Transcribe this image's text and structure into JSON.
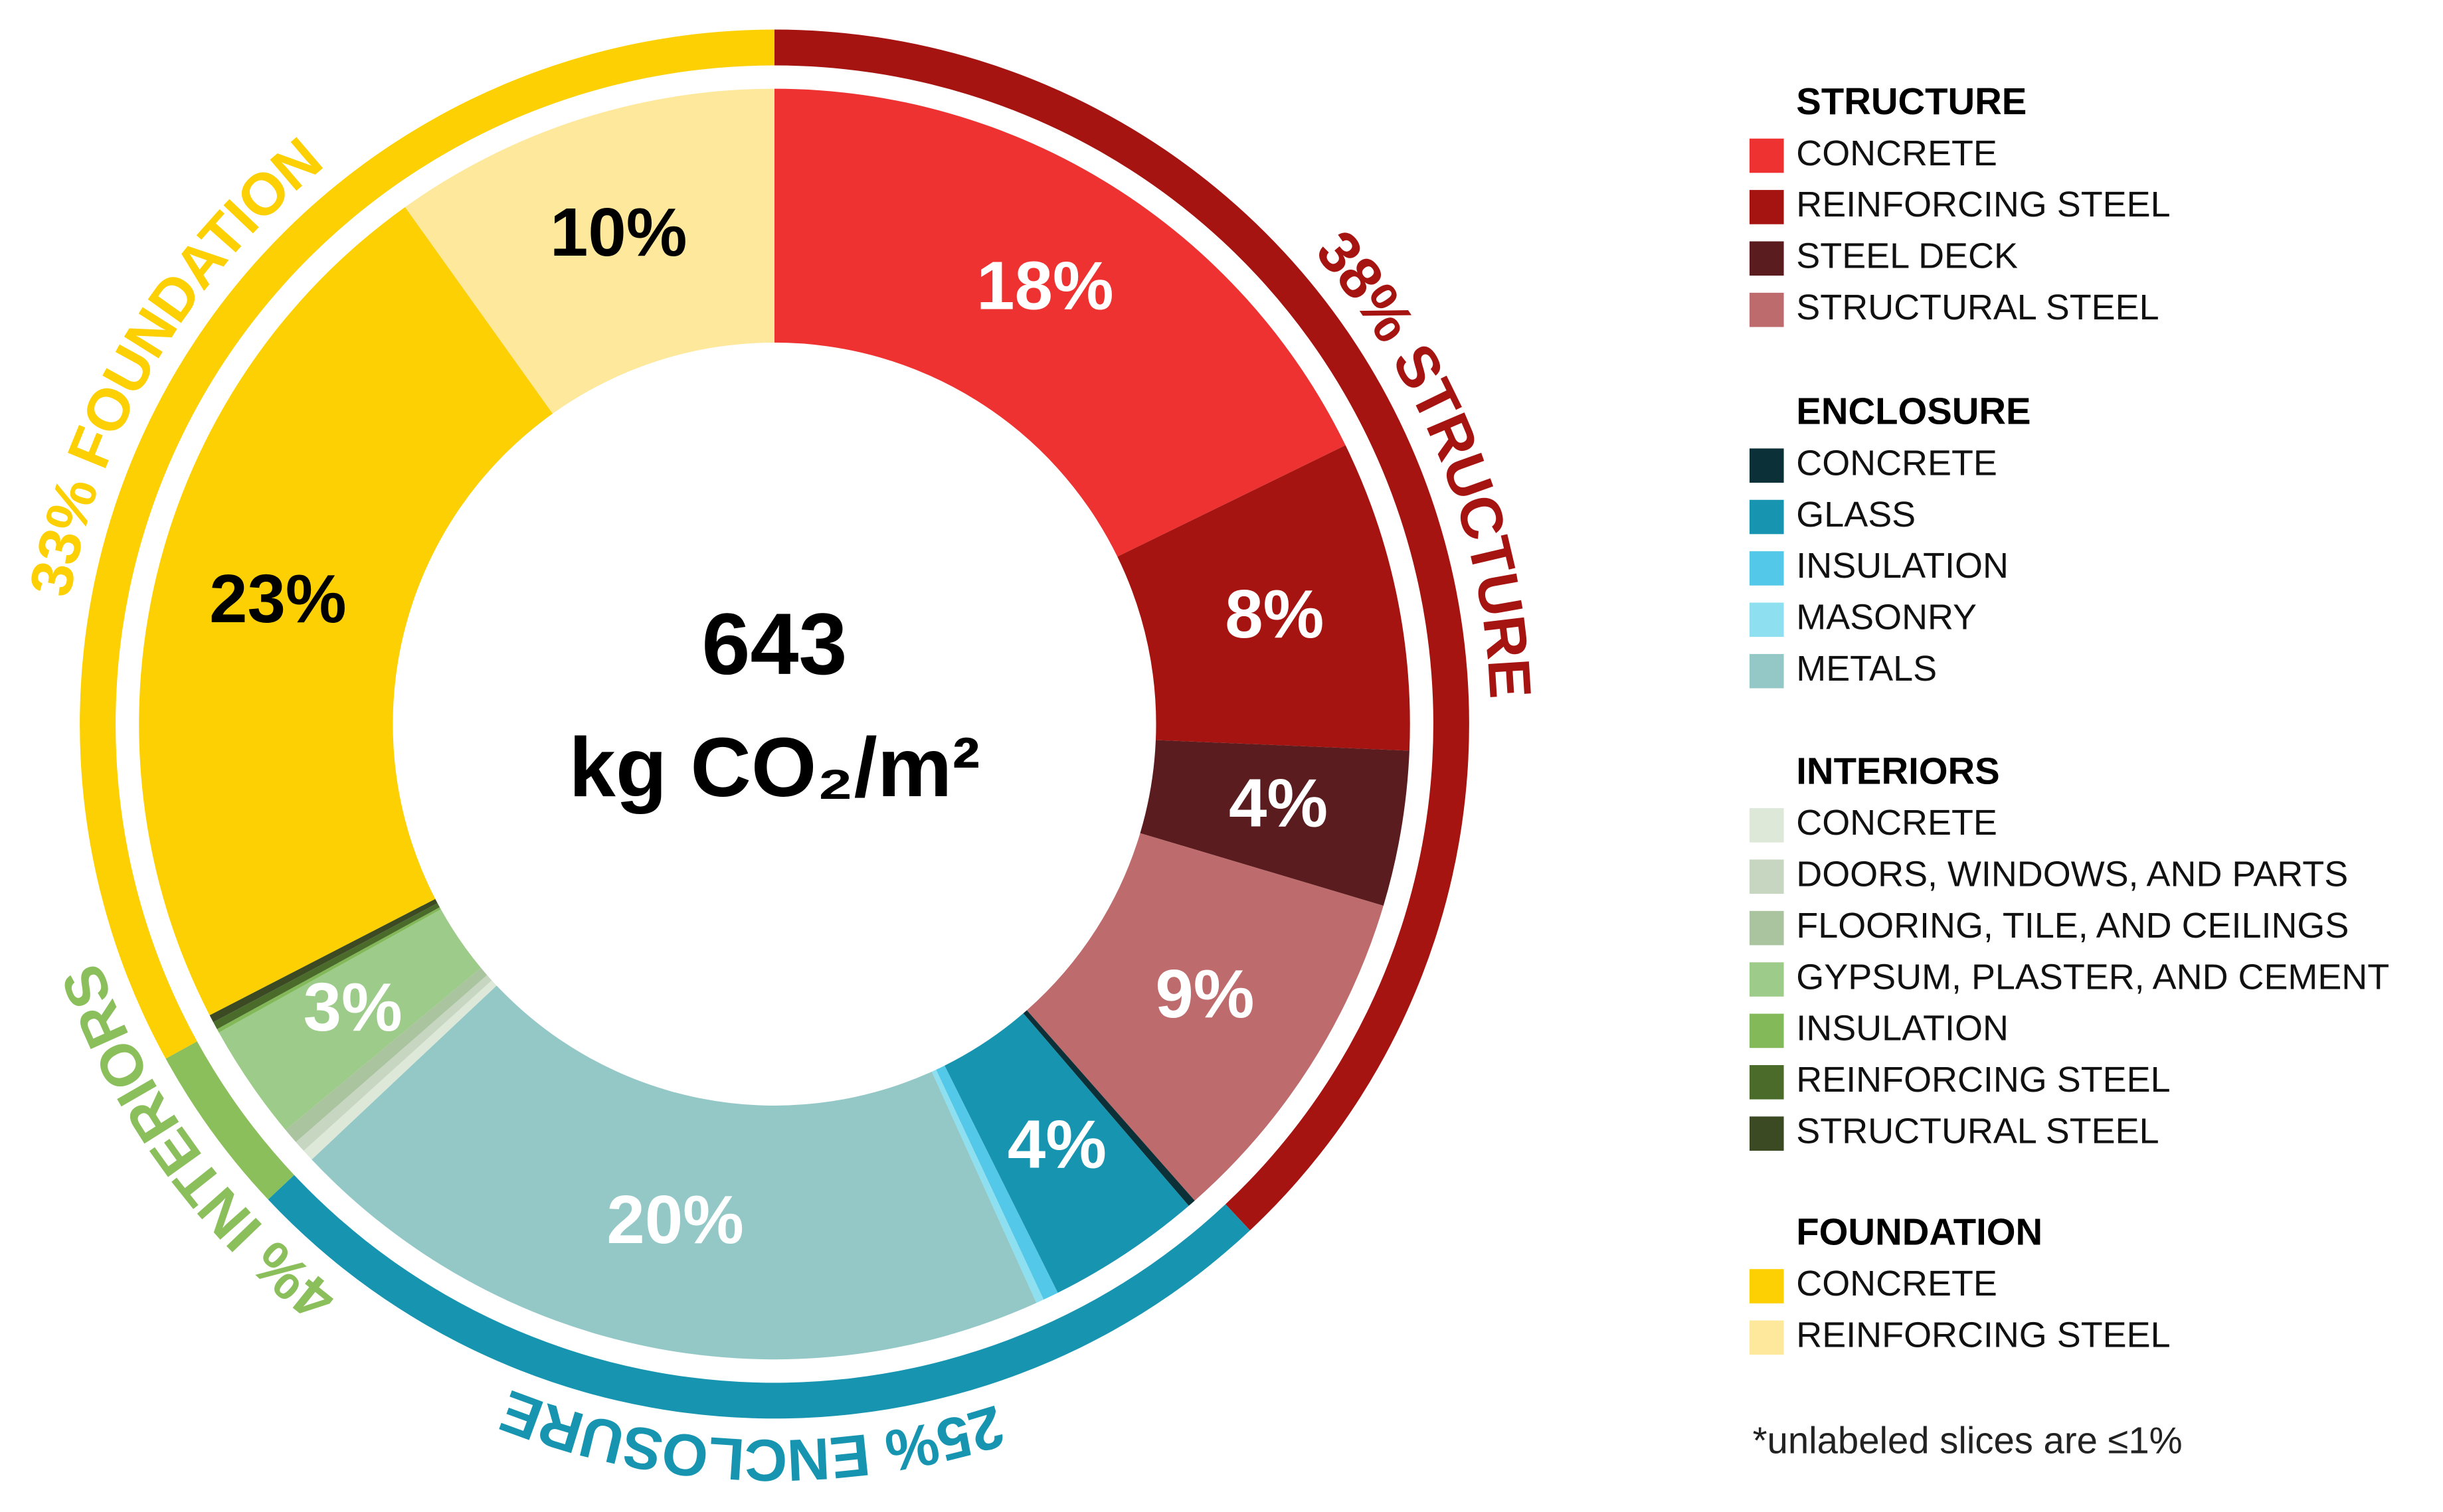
{
  "chart_data": {
    "type": "donut",
    "center_value": 643,
    "center_label": "kg CO₂/m²",
    "footnote": "*unlabeled slices are ≤1%",
    "groups": [
      {
        "name": "STRUCTURE",
        "color": "#a51410",
        "total": 38,
        "ring_label": "38% STRUCTURE",
        "items": [
          {
            "name": "CONCRETE",
            "color": "#ee3231",
            "value": 18,
            "value_label": "18%",
            "label_color": "#ffffff"
          },
          {
            "name": "REINFORCING STEEL",
            "color": "#a51410",
            "value": 8,
            "value_label": "8%",
            "label_color": "#ffffff"
          },
          {
            "name": "STEEL DECK",
            "color": "#5a1c1f",
            "value": 4,
            "value_label": "4%",
            "label_color": "#ffffff"
          },
          {
            "name": "STRUCTURAL STEEL",
            "color": "#bd6b6c",
            "value": 9,
            "value_label": "9%",
            "label_color": "#ffffff"
          }
        ]
      },
      {
        "name": "ENCLOSURE",
        "color": "#1795b0",
        "total": 25,
        "ring_label": "25% ENCLOSURE",
        "items": [
          {
            "name": "CONCRETE",
            "color": "#0b3038",
            "value": 0.2
          },
          {
            "name": "GLASS",
            "color": "#1795b0",
            "value": 4,
            "value_label": "4%",
            "label_color": "#ffffff"
          },
          {
            "name": "INSULATION",
            "color": "#53c8e8",
            "value": 0.4
          },
          {
            "name": "MASONRY",
            "color": "#8ee0f0",
            "value": 0.2
          },
          {
            "name": "METALS",
            "color": "#93c8c6",
            "value": 20,
            "value_label": "20%",
            "label_color": "#ffffff"
          }
        ]
      },
      {
        "name": "INTERIORS",
        "color": "#8bbf5c",
        "total": 4,
        "ring_label": "4% INTERIORS",
        "items": [
          {
            "name": "CONCRETE",
            "color": "#dde8d9",
            "value": 0.3
          },
          {
            "name": "DOORS, WINDOWS, AND PARTS",
            "color": "#c6d6c0",
            "value": 0.3
          },
          {
            "name": "FLOORING, TILE, AND CEILINGS",
            "color": "#a9c49e",
            "value": 0.4
          },
          {
            "name": "GYPSUM, PLASTER, AND CEMENT",
            "color": "#9dcb8a",
            "value": 3,
            "value_label": "3%",
            "label_color": "#ffffff"
          },
          {
            "name": "INSULATION",
            "color": "#84b95a",
            "value": 0.1
          },
          {
            "name": "REINFORCING STEEL",
            "color": "#4a6b2a",
            "value": 0.2
          },
          {
            "name": "STRUCTURAL STEEL",
            "color": "#3b4a23",
            "value": 0.2
          }
        ]
      },
      {
        "name": "FOUNDATION",
        "color": "#fcd003",
        "total": 33,
        "ring_label": "33% FOUNDATION",
        "items": [
          {
            "name": "CONCRETE",
            "color": "#fcd003",
            "value": 23,
            "value_label": "23%",
            "label_color": "#000000"
          },
          {
            "name": "REINFORCING STEEL",
            "color": "#fde89b",
            "value": 10,
            "value_label": "10%",
            "label_color": "#000000"
          }
        ]
      }
    ]
  }
}
